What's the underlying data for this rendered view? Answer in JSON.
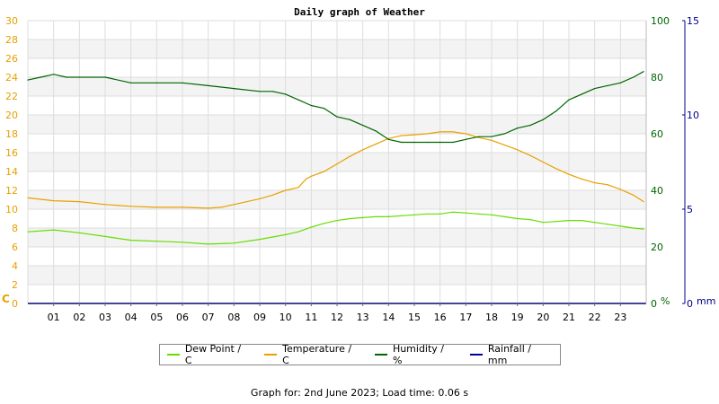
{
  "chart_data": {
    "type": "line",
    "title": "Daily graph of Weather",
    "x_unit": "hour",
    "x_ticks": [
      "01",
      "02",
      "03",
      "04",
      "05",
      "06",
      "07",
      "08",
      "09",
      "10",
      "11",
      "12",
      "13",
      "14",
      "15",
      "16",
      "17",
      "18",
      "19",
      "20",
      "21",
      "22",
      "23"
    ],
    "xlim": [
      0,
      24
    ],
    "axes": {
      "left": {
        "label": "C",
        "ylim": [
          0,
          30
        ],
        "ticks": [
          0,
          2,
          4,
          6,
          8,
          10,
          12,
          14,
          16,
          18,
          20,
          22,
          24,
          26,
          28,
          30
        ],
        "color": "#e8a000"
      },
      "humidity": {
        "label": "%",
        "ylim": [
          0,
          100
        ],
        "ticks": [
          0,
          20,
          40,
          60,
          80,
          100
        ],
        "color": "#006400"
      },
      "rain": {
        "label": "mm",
        "ylim": [
          0,
          15
        ],
        "ticks": [
          0,
          5,
          10,
          15
        ],
        "color": "#00008b"
      }
    },
    "grid": true,
    "legend_position": "bottom",
    "series": [
      {
        "name": "Dew Point / C",
        "axis": "left",
        "color": "#66dd00",
        "x": [
          0,
          1,
          2,
          3,
          4,
          5,
          6,
          7,
          8,
          9,
          10,
          10.5,
          11,
          11.5,
          12,
          12.5,
          13,
          13.5,
          14,
          14.5,
          15,
          15.5,
          16,
          16.5,
          17,
          17.5,
          18,
          18.5,
          19,
          19.5,
          20,
          20.5,
          21,
          21.5,
          22,
          22.5,
          23,
          23.5,
          23.9
        ],
        "y": [
          7.6,
          7.8,
          7.5,
          7.1,
          6.7,
          6.6,
          6.5,
          6.3,
          6.4,
          6.8,
          7.3,
          7.6,
          8.1,
          8.5,
          8.8,
          9.0,
          9.1,
          9.2,
          9.2,
          9.3,
          9.4,
          9.5,
          9.5,
          9.7,
          9.6,
          9.5,
          9.4,
          9.2,
          9.0,
          8.9,
          8.6,
          8.7,
          8.8,
          8.8,
          8.6,
          8.4,
          8.2,
          8.0,
          7.9
        ]
      },
      {
        "name": "Temperature / C",
        "axis": "left",
        "color": "#e8a000",
        "x": [
          0,
          1,
          2,
          3,
          4,
          5,
          6,
          7,
          7.5,
          8,
          8.5,
          9,
          9.5,
          10,
          10.5,
          10.8,
          11,
          11.5,
          12,
          12.5,
          13,
          13.5,
          14,
          14.5,
          15,
          15.5,
          16,
          16.5,
          17,
          17.5,
          18,
          18.5,
          19,
          19.5,
          20,
          20.5,
          21,
          21.5,
          22,
          22.5,
          23,
          23.5,
          23.9
        ],
        "y": [
          11.2,
          10.9,
          10.8,
          10.5,
          10.3,
          10.2,
          10.2,
          10.1,
          10.2,
          10.5,
          10.8,
          11.1,
          11.5,
          12.0,
          12.3,
          13.2,
          13.5,
          14.0,
          14.8,
          15.6,
          16.3,
          16.9,
          17.5,
          17.8,
          17.9,
          18.0,
          18.2,
          18.2,
          18.0,
          17.6,
          17.3,
          16.8,
          16.3,
          15.7,
          15.0,
          14.3,
          13.7,
          13.2,
          12.8,
          12.6,
          12.1,
          11.5,
          10.8
        ]
      },
      {
        "name": "Humidity / %",
        "axis": "humidity",
        "color": "#006400",
        "x": [
          0,
          0.5,
          1,
          1.5,
          2,
          3,
          4,
          5,
          6,
          7,
          8,
          9,
          9.5,
          10,
          10.5,
          11,
          11.5,
          12,
          12.5,
          13,
          13.5,
          14,
          14.5,
          15,
          15.5,
          16,
          16.5,
          17,
          17.5,
          18,
          18.5,
          19,
          19.5,
          20,
          20.5,
          21,
          21.5,
          22,
          22.5,
          23,
          23.5,
          23.9
        ],
        "y": [
          79,
          80,
          81,
          80,
          80,
          80,
          78,
          78,
          78,
          77,
          76,
          75,
          75,
          74,
          72,
          70,
          69,
          66,
          65,
          63,
          61,
          58,
          57,
          57,
          57,
          57,
          57,
          58,
          59,
          59,
          60,
          62,
          63,
          65,
          68,
          72,
          74,
          76,
          77,
          78,
          80,
          82
        ]
      },
      {
        "name": "Rainfall / mm",
        "axis": "rain",
        "color": "#0000a0",
        "x": [
          0,
          24
        ],
        "y": [
          0,
          0
        ]
      }
    ],
    "footer": "Graph for: 2nd June 2023; Load time: 0.06 s"
  }
}
